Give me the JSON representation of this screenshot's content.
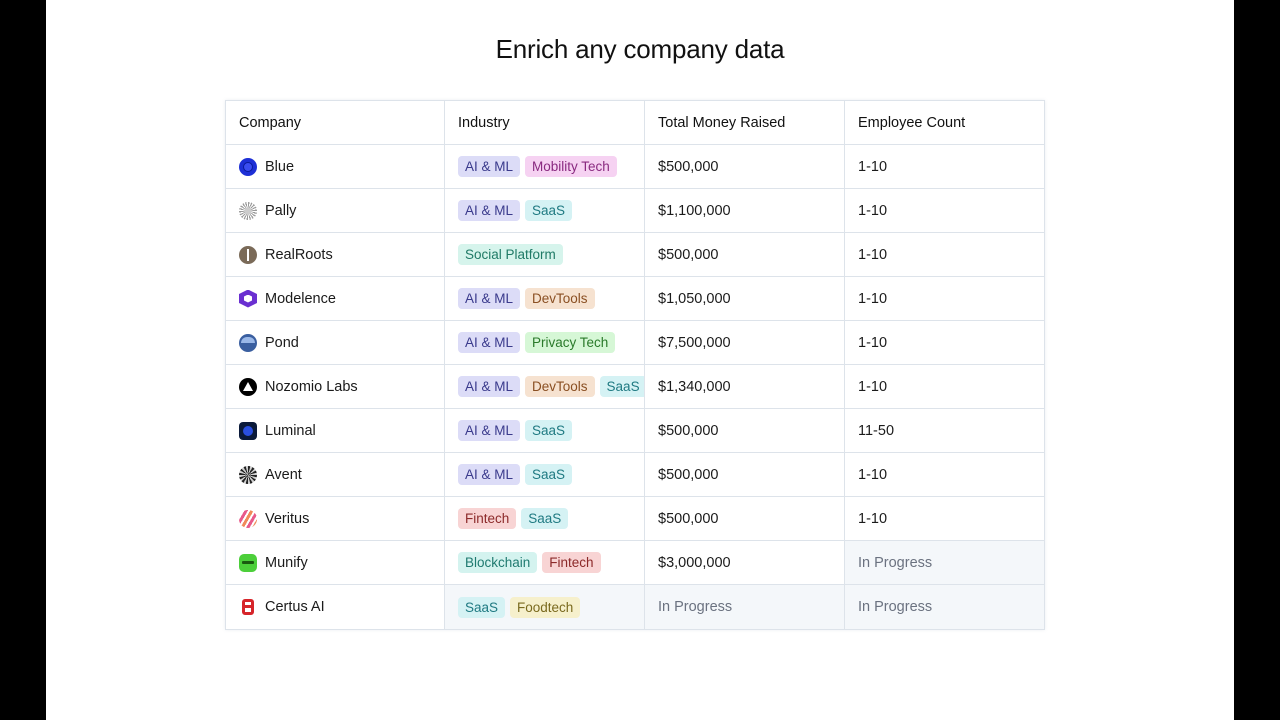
{
  "title": "Enrich any company data",
  "columns": [
    "Company",
    "Industry",
    "Total Money Raised",
    "Employee Count"
  ],
  "tag_colors": {
    "AI & ML": {
      "bg": "#dcdcf7",
      "fg": "#3a3a8c"
    },
    "Mobility Tech": {
      "bg": "#f6d2f2",
      "fg": "#8a2a80"
    },
    "SaaS": {
      "bg": "#d5f2f4",
      "fg": "#1f7a82"
    },
    "Social Platform": {
      "bg": "#d6f4ec",
      "fg": "#1f7a66"
    },
    "DevTools": {
      "bg": "#f6e2d0",
      "fg": "#8a4f22"
    },
    "Privacy Tech": {
      "bg": "#d6f7d6",
      "fg": "#2a7a2a"
    },
    "Fintech": {
      "bg": "#f8d4d4",
      "fg": "#8c2a2a"
    },
    "Blockchain": {
      "bg": "#d4f3ef",
      "fg": "#1f7a70"
    },
    "Foodtech": {
      "bg": "#f6f0cc",
      "fg": "#7a6a1f"
    }
  },
  "rows": [
    {
      "company": "Blue",
      "logo": "blue-circle-icon",
      "logo_color": "#1d2fd6",
      "industries": [
        "AI & ML",
        "Mobility Tech"
      ],
      "money": "$500,000",
      "employees": "1-10"
    },
    {
      "company": "Pally",
      "logo": "pally-burst-icon",
      "logo_color": "#9a9a9a",
      "industries": [
        "AI & ML",
        "SaaS"
      ],
      "money": "$1,100,000",
      "employees": "1-10"
    },
    {
      "company": "RealRoots",
      "logo": "realroots-leaf-icon",
      "logo_color": "#7a6a58",
      "industries": [
        "Social Platform"
      ],
      "money": "$500,000",
      "employees": "1-10"
    },
    {
      "company": "Modelence",
      "logo": "modelence-hexagon-icon",
      "logo_color": "#6a2fd1",
      "industries": [
        "AI & ML",
        "DevTools"
      ],
      "money": "$1,050,000",
      "employees": "1-10"
    },
    {
      "company": "Pond",
      "logo": "pond-icon",
      "logo_color": "#3a5fa0",
      "industries": [
        "AI & ML",
        "Privacy Tech"
      ],
      "money": "$7,500,000",
      "employees": "1-10"
    },
    {
      "company": "Nozomio Labs",
      "logo": "nozomio-triangle-icon",
      "logo_color": "#000000",
      "industries": [
        "AI & ML",
        "DevTools",
        "SaaS"
      ],
      "money": "$1,340,000",
      "employees": "1-10"
    },
    {
      "company": "Luminal",
      "logo": "luminal-square-icon",
      "logo_color": "#0b1a3a",
      "industries": [
        "AI & ML",
        "SaaS"
      ],
      "money": "$500,000",
      "employees": "11-50"
    },
    {
      "company": "Avent",
      "logo": "avent-star-icon",
      "logo_color": "#222222",
      "industries": [
        "AI & ML",
        "SaaS"
      ],
      "money": "$500,000",
      "employees": "1-10"
    },
    {
      "company": "Veritus",
      "logo": "veritus-stripes-icon",
      "logo_color": "#e8683a",
      "industries": [
        "Fintech",
        "SaaS"
      ],
      "money": "$500,000",
      "employees": "1-10"
    },
    {
      "company": "Munify",
      "logo": "munify-badge-icon",
      "logo_color": "#4ccf3a",
      "industries": [
        "Blockchain",
        "Fintech"
      ],
      "money": "$3,000,000",
      "employees": "In Progress",
      "employees_pending": true
    },
    {
      "company": "Certus AI",
      "logo": "certus-icon",
      "logo_color": "#d6252a",
      "industries": [
        "SaaS",
        "Foodtech"
      ],
      "money": "In Progress",
      "employees": "In Progress",
      "industries_pending": true,
      "money_pending": true,
      "employees_pending": true
    }
  ]
}
